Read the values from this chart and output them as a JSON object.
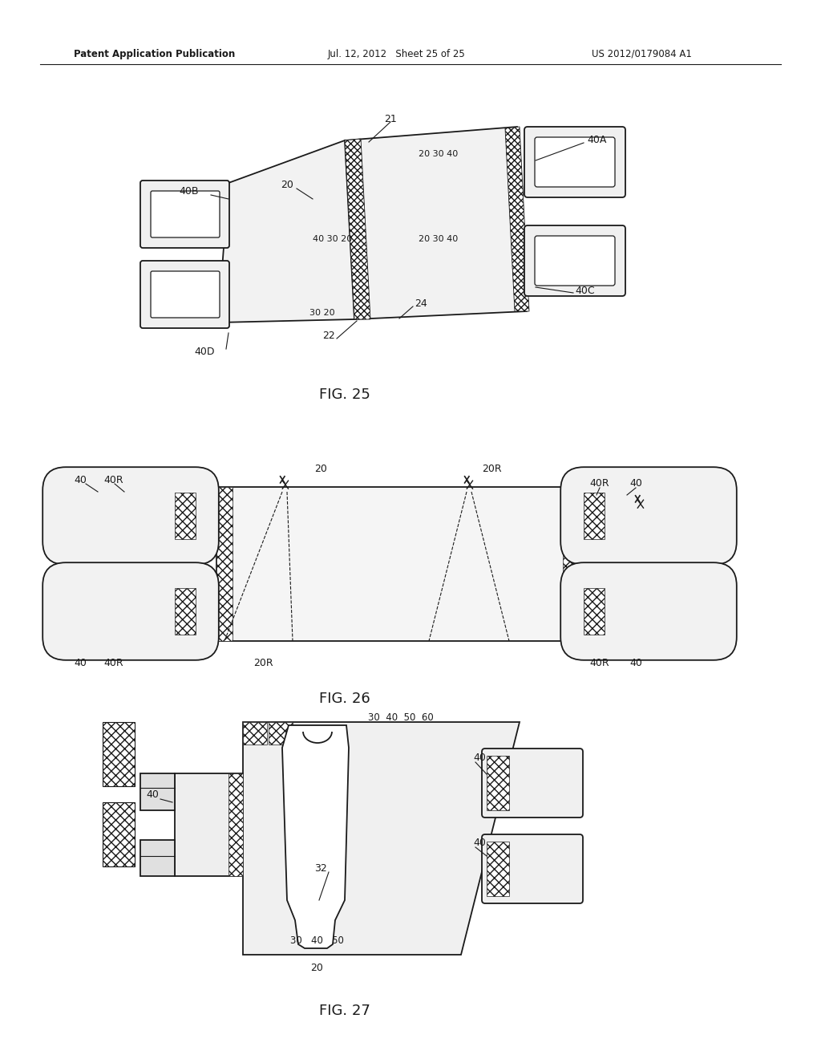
{
  "background_color": "#ffffff",
  "line_color": "#1a1a1a",
  "text_color": "#1a1a1a",
  "header_left": "Patent Application Publication",
  "header_mid": "Jul. 12, 2012   Sheet 25 of 25",
  "header_right": "US 2012/0179084 A1"
}
